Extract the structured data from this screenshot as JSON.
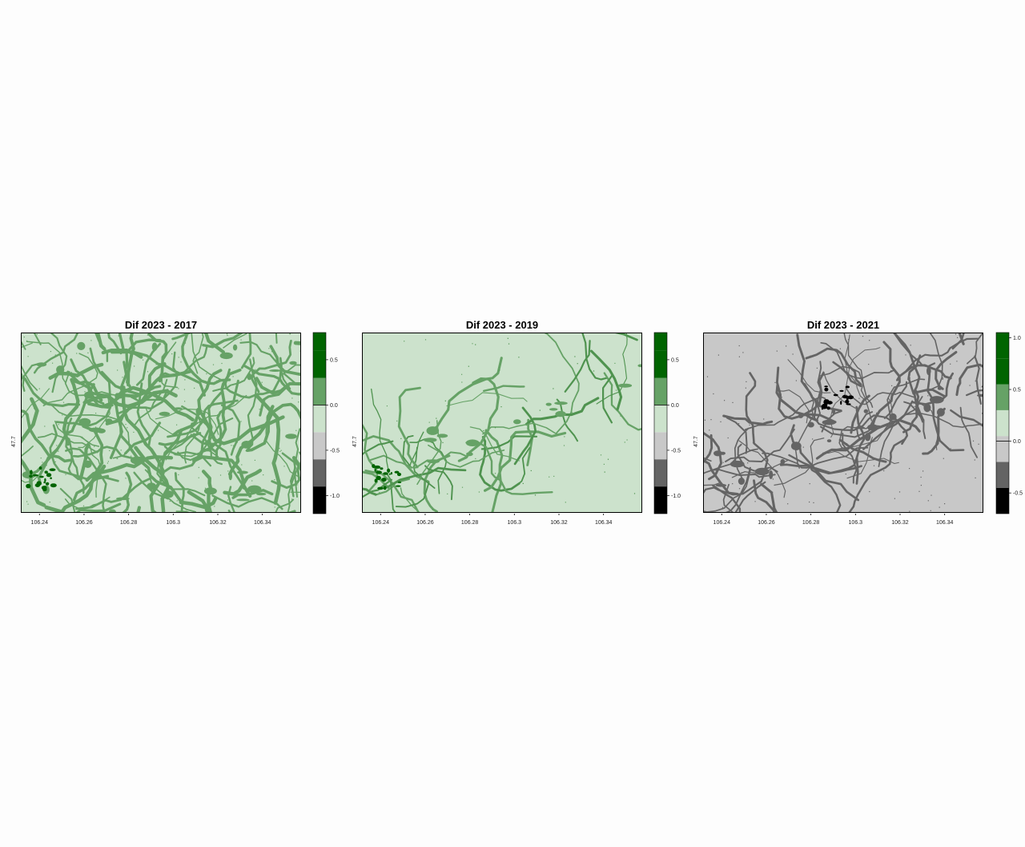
{
  "chart_data": [
    {
      "type": "heatmap",
      "title": "Dif 2023 - 2017",
      "xlabel": "",
      "ylabel": "",
      "x_ticks": [
        106.24,
        106.26,
        106.28,
        106.3,
        106.32,
        106.34
      ],
      "x_tick_labels": [
        "106.24",
        "106.26",
        "106.28",
        "106.3",
        "106.32",
        "106.34"
      ],
      "xlim": [
        106.232,
        106.357
      ],
      "y_ticks": [
        47.7
      ],
      "y_tick_labels": [
        "47.7"
      ],
      "legend": {
        "placement": "right",
        "range": [
          -1.2,
          0.8
        ],
        "breaks": [
          -1.2,
          -0.9,
          -0.6,
          -0.3,
          0.0,
          0.3,
          0.6,
          0.8
        ],
        "colors": [
          "#000000",
          "#646464",
          "#c8c8c8",
          "#cce2cc",
          "#66a266",
          "#006400"
        ],
        "tick_values": [
          0.5,
          0.0,
          -0.5,
          -1.0
        ],
        "tick_labels": [
          "0.5",
          "0.0",
          "-0.5",
          "-1.0"
        ],
        "marked_value": 0.0
      },
      "pattern": {
        "background": "#cce2cc",
        "band_colors": [
          "#66a266",
          "#66a266",
          "#006400"
        ],
        "distribution": "dense-across-whole-area",
        "density": 0.55,
        "dark_patch": "lower-left"
      }
    },
    {
      "type": "heatmap",
      "title": "Dif 2023 - 2019",
      "xlabel": "",
      "ylabel": "",
      "x_ticks": [
        106.24,
        106.26,
        106.28,
        106.3,
        106.32,
        106.34
      ],
      "x_tick_labels": [
        "106.24",
        "106.26",
        "106.28",
        "106.3",
        "106.32",
        "106.34"
      ],
      "xlim": [
        106.232,
        106.357
      ],
      "y_ticks": [
        47.7
      ],
      "y_tick_labels": [
        "47.7"
      ],
      "legend": {
        "placement": "right",
        "range": [
          -1.2,
          0.8
        ],
        "breaks": [
          -1.2,
          -0.9,
          -0.6,
          -0.3,
          0.0,
          0.3,
          0.6,
          0.8
        ],
        "colors": [
          "#000000",
          "#646464",
          "#c8c8c8",
          "#cce2cc",
          "#66a266",
          "#006400"
        ],
        "tick_values": [
          0.5,
          0.0,
          -0.5,
          -1.0
        ],
        "tick_labels": [
          "0.5",
          "0.0",
          "-0.5",
          "-1.0"
        ],
        "marked_value": 0.0
      },
      "pattern": {
        "background": "#cce2cc",
        "band_colors": [
          "#66a266",
          "#4f934f",
          "#006400"
        ],
        "distribution": "diagonal-river-corridor",
        "density": 0.18,
        "dark_patch": "lower-left"
      }
    },
    {
      "type": "heatmap",
      "title": "Dif 2023 - 2021",
      "xlabel": "",
      "ylabel": "",
      "x_ticks": [
        106.24,
        106.26,
        106.28,
        106.3,
        106.32,
        106.34
      ],
      "x_tick_labels": [
        "106.24",
        "106.26",
        "106.28",
        "106.3",
        "106.32",
        "106.34"
      ],
      "xlim": [
        106.232,
        106.357
      ],
      "y_ticks": [
        47.7
      ],
      "y_tick_labels": [
        "47.7"
      ],
      "legend": {
        "placement": "right",
        "range": [
          -0.7,
          1.05
        ],
        "breaks": [
          -0.7,
          -0.45,
          -0.2,
          0.05,
          0.3,
          0.55,
          0.8,
          1.05
        ],
        "colors": [
          "#000000",
          "#646464",
          "#c8c8c8",
          "#cce2cc",
          "#66a266",
          "#006400"
        ],
        "tick_values": [
          1.0,
          0.5,
          0.0,
          -0.5
        ],
        "tick_labels": [
          "1.0",
          "0.5",
          "0.0",
          "-0.5"
        ],
        "marked_value": 0.0
      },
      "pattern": {
        "background": "#c8c8c8",
        "band_colors": [
          "#646464",
          "#646464",
          "#000000"
        ],
        "distribution": "diagonal-river-corridor",
        "density": 0.35,
        "dark_patch": "center-top"
      }
    }
  ]
}
